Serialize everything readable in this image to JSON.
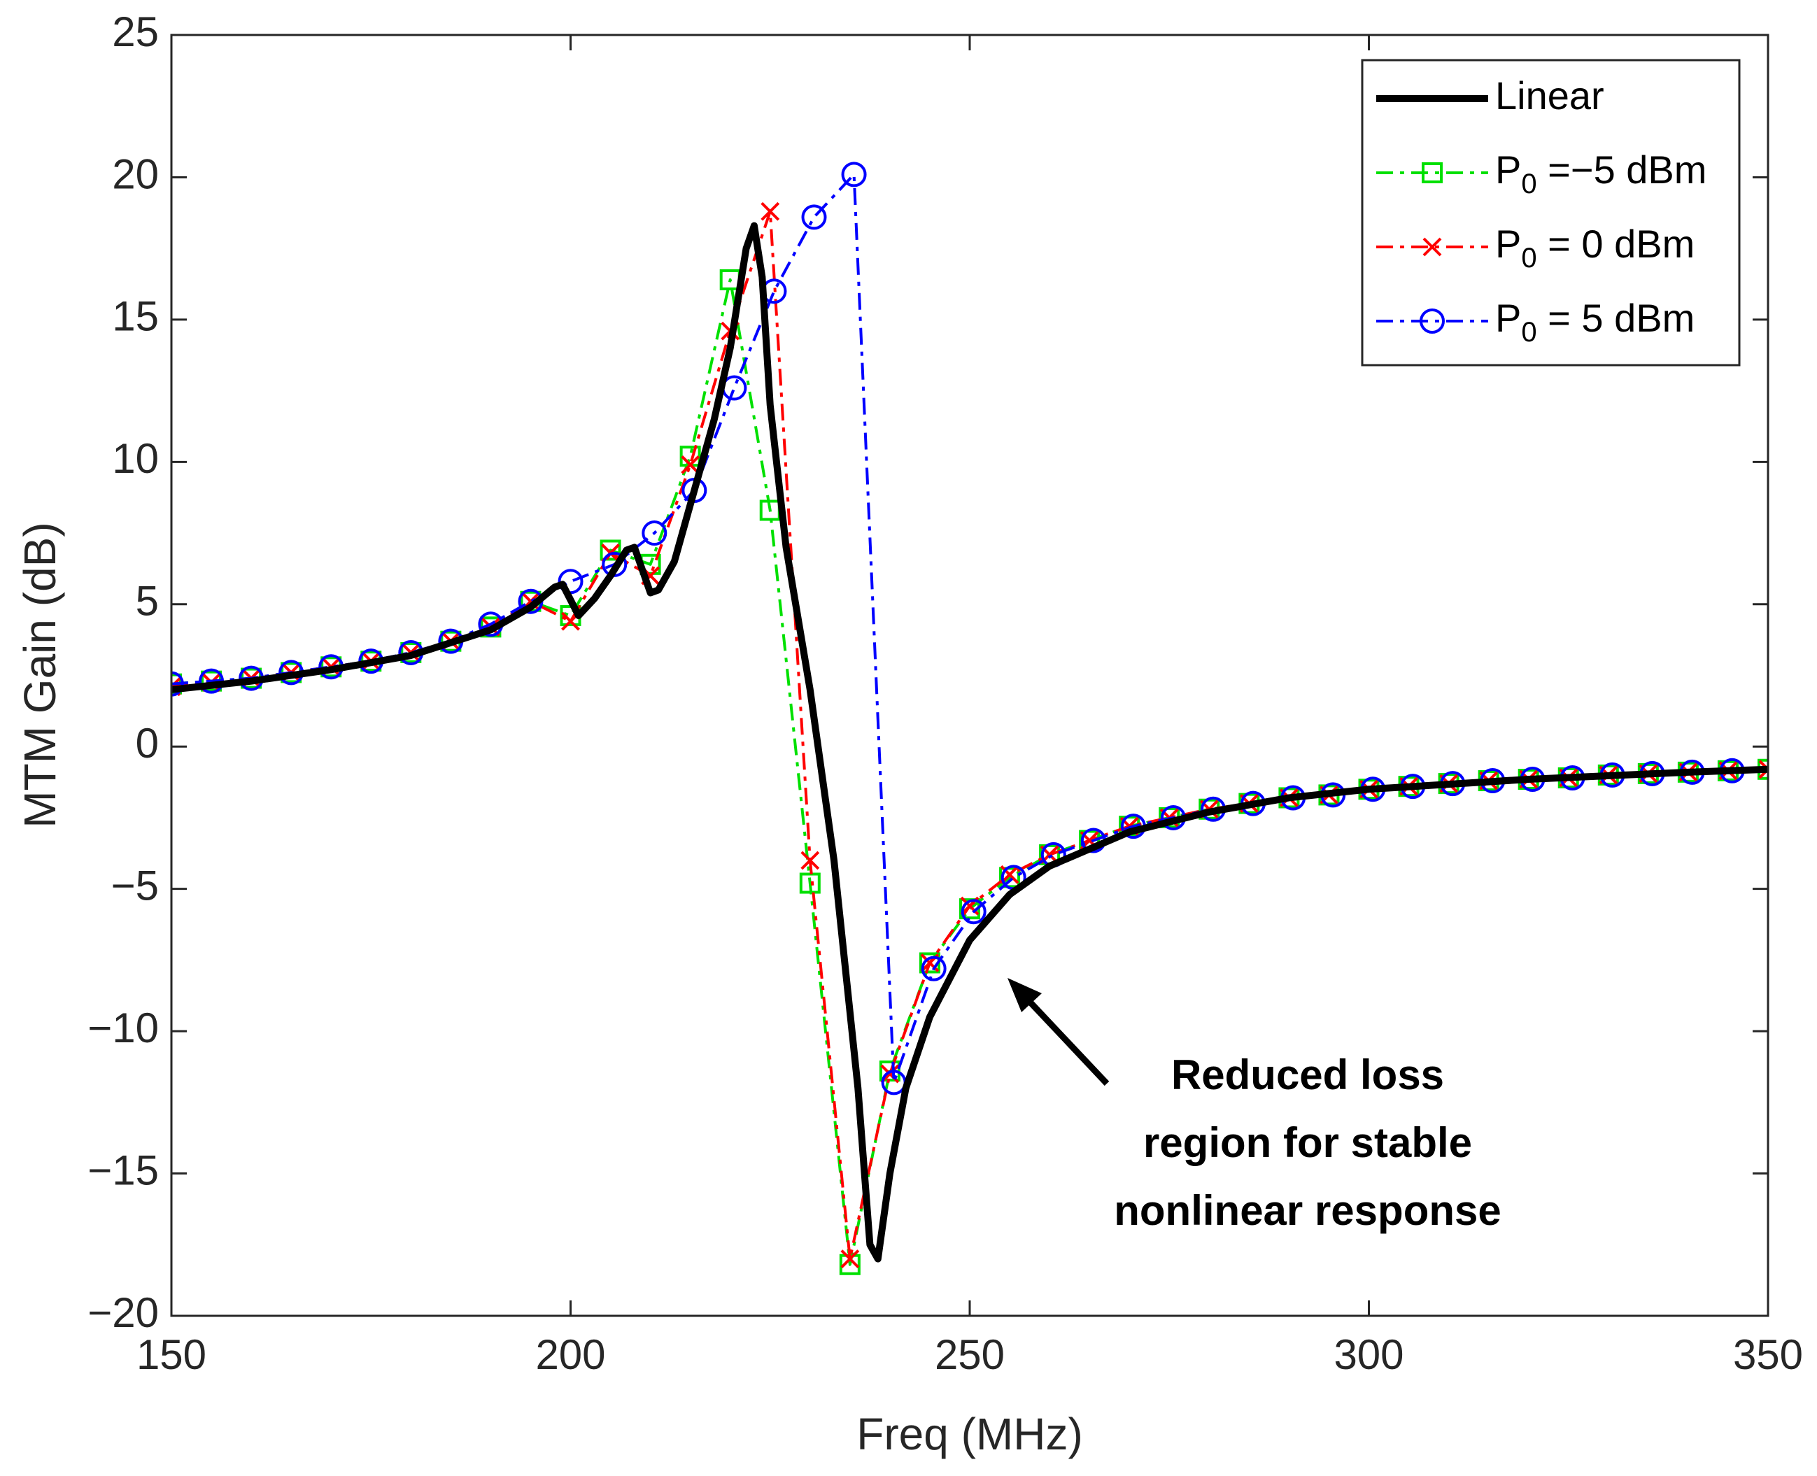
{
  "chart_data": {
    "type": "line",
    "xlabel": "Freq (MHz)",
    "ylabel": "MTM Gain (dB)",
    "xlim": [
      150,
      350
    ],
    "ylim": [
      -20,
      25
    ],
    "xticks": [
      150,
      200,
      250,
      300,
      350
    ],
    "yticks": [
      {
        "value": -20,
        "label": "−20"
      },
      {
        "value": -15,
        "label": "−15"
      },
      {
        "value": -10,
        "label": "−10"
      },
      {
        "value": -5,
        "label": "−5"
      },
      0,
      5,
      10,
      15,
      20,
      25
    ],
    "legend": "upper right",
    "annotation": [
      "Reduced loss",
      "region for stable",
      "nonlinear response"
    ],
    "series": [
      {
        "name": "Linear",
        "color": "#000000",
        "linestyle": "solid",
        "marker": "none",
        "x": [
          150,
          160,
          170,
          180,
          190,
          195,
          198,
          199,
          201,
          203,
          205,
          207,
          208,
          210,
          211,
          213,
          215,
          218,
          220,
          222,
          223,
          224,
          225,
          227,
          230,
          233,
          236,
          237.5,
          238.5,
          240,
          242,
          245,
          250,
          255,
          260,
          270,
          280,
          290,
          300,
          320,
          340,
          350
        ],
        "values": [
          2.0,
          2.3,
          2.7,
          3.2,
          4.1,
          4.9,
          5.6,
          5.7,
          4.6,
          5.2,
          6.0,
          6.9,
          7.0,
          5.4,
          5.5,
          6.5,
          8.5,
          11.5,
          14,
          17.5,
          18.3,
          16.5,
          12,
          7,
          2,
          -4,
          -12,
          -17.5,
          -18,
          -15,
          -12,
          -9.5,
          -6.8,
          -5.2,
          -4.2,
          -3.0,
          -2.3,
          -1.8,
          -1.5,
          -1.15,
          -0.9,
          -0.8
        ]
      },
      {
        "name": "P0 =−5 dBm",
        "color": "#00e000",
        "linestyle": "dashdot",
        "marker": "square",
        "x": [
          150,
          155,
          160,
          165,
          170,
          175,
          180,
          185,
          190,
          195,
          200,
          205,
          210,
          215,
          220,
          225,
          230,
          235,
          240,
          245,
          250,
          255,
          260,
          265,
          270,
          275,
          280,
          285,
          290,
          295,
          300,
          305,
          310,
          315,
          320,
          325,
          330,
          335,
          340,
          345,
          350
        ],
        "values": [
          2.2,
          2.3,
          2.4,
          2.6,
          2.8,
          3.0,
          3.3,
          3.7,
          4.2,
          5.1,
          4.6,
          6.9,
          6.4,
          10.2,
          16.4,
          8.3,
          -4.8,
          -18.2,
          -11.4,
          -7.6,
          -5.7,
          -4.6,
          -3.8,
          -3.3,
          -2.8,
          -2.5,
          -2.2,
          -2.0,
          -1.8,
          -1.7,
          -1.5,
          -1.4,
          -1.3,
          -1.2,
          -1.15,
          -1.1,
          -1.0,
          -0.95,
          -0.9,
          -0.85,
          -0.8
        ]
      },
      {
        "name": "P0 = 0 dBm",
        "color": "#ff0000",
        "linestyle": "dashdot",
        "marker": "x",
        "x": [
          150,
          155,
          160,
          165,
          170,
          175,
          180,
          185,
          190,
          195,
          200,
          205,
          210,
          215,
          220,
          225,
          230,
          235,
          240,
          245,
          250,
          255,
          260,
          265,
          270,
          275,
          280,
          285,
          290,
          295,
          300,
          305,
          310,
          315,
          320,
          325,
          330,
          335,
          340,
          345,
          350
        ],
        "values": [
          2.1,
          2.25,
          2.4,
          2.6,
          2.8,
          3.0,
          3.3,
          3.7,
          4.2,
          5.1,
          4.4,
          6.8,
          6.0,
          9.9,
          14.6,
          18.8,
          -4.0,
          -18.0,
          -11.5,
          -7.6,
          -5.6,
          -4.5,
          -3.8,
          -3.3,
          -2.8,
          -2.5,
          -2.2,
          -2.0,
          -1.8,
          -1.7,
          -1.5,
          -1.4,
          -1.3,
          -1.2,
          -1.15,
          -1.1,
          -1.0,
          -0.95,
          -0.9,
          -0.85,
          -0.8
        ]
      },
      {
        "name": "P0 = 5 dBm",
        "color": "#0000ff",
        "linestyle": "dashdot",
        "marker": "circle",
        "x": [
          150,
          155,
          160,
          165,
          170,
          175,
          180,
          185,
          190,
          195,
          200,
          205.5,
          210.5,
          215.5,
          220.5,
          225.5,
          230.5,
          235.5,
          240.5,
          245.5,
          250.5,
          255.5,
          260.5,
          265.5,
          270.5,
          275.5,
          280.5,
          285.5,
          290.5,
          295.5,
          300.5,
          305.5,
          310.5,
          315.5,
          320.5,
          325.5,
          330.5,
          335.5,
          340.5,
          345.5
        ],
        "values": [
          2.2,
          2.3,
          2.4,
          2.6,
          2.8,
          3.0,
          3.3,
          3.7,
          4.3,
          5.1,
          5.8,
          6.4,
          7.5,
          9.0,
          12.6,
          16.0,
          18.6,
          20.1,
          -11.8,
          -7.8,
          -5.8,
          -4.6,
          -3.8,
          -3.3,
          -2.8,
          -2.5,
          -2.2,
          -2.0,
          -1.8,
          -1.7,
          -1.5,
          -1.4,
          -1.3,
          -1.2,
          -1.15,
          -1.1,
          -1.0,
          -0.95,
          -0.9,
          -0.85
        ]
      }
    ]
  }
}
